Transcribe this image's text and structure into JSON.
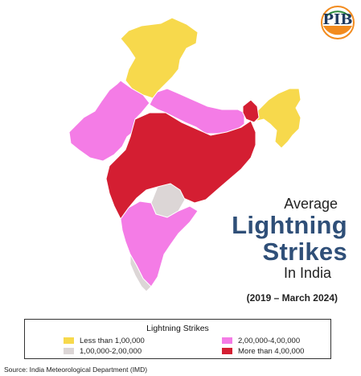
{
  "logo": {
    "text": "PIB"
  },
  "title": {
    "line1": "Average",
    "line2": "Lightning",
    "line3": "Strikes",
    "line4": "In India",
    "period": "(2019 – March 2024)"
  },
  "legend": {
    "title": "Lightning Strikes",
    "items": [
      {
        "label": "Less than 1,00,000",
        "color": "#f7d94c"
      },
      {
        "label": "1,00,000-2,00,000",
        "color": "#dcd6d6"
      },
      {
        "label": "2,00,000-4,00,000",
        "color": "#f47ce6"
      },
      {
        "label": "More than 4,00,000",
        "color": "#d41e32"
      }
    ]
  },
  "source": "Source: India Meteorological Department (IMD)",
  "regions": [
    {
      "name": "north",
      "category": "Less than 1,00,000"
    },
    {
      "name": "northwest",
      "category": "2,00,000-4,00,000"
    },
    {
      "name": "northcentral",
      "category": "2,00,000-4,00,000"
    },
    {
      "name": "central-east",
      "category": "More than 4,00,000"
    },
    {
      "name": "northeast",
      "category": "Less than 1,00,000"
    },
    {
      "name": "south",
      "category": "2,00,000-4,00,000"
    }
  ]
}
